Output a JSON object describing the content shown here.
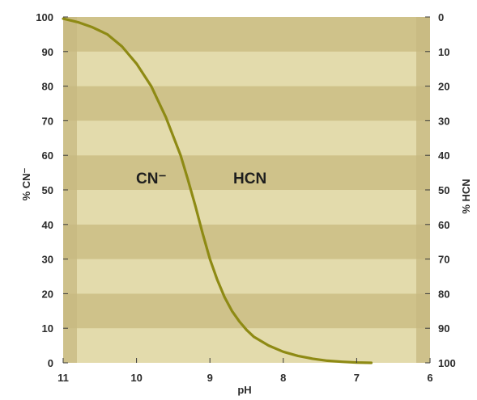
{
  "chart_data": {
    "type": "line",
    "title": "",
    "xlabel": "pH",
    "ylabel_left": "% CN⁻",
    "ylabel_right": "% HCN",
    "xlim": [
      11,
      6
    ],
    "ylim": [
      0,
      100
    ],
    "x_ticks": [
      "11",
      "10",
      "9",
      "8",
      "7",
      "6"
    ],
    "y_ticks_left": [
      "0",
      "10",
      "20",
      "30",
      "40",
      "50",
      "60",
      "70",
      "80",
      "90",
      "100"
    ],
    "y_ticks_right": [
      "100",
      "90",
      "80",
      "70",
      "60",
      "50",
      "40",
      "30",
      "20",
      "10",
      "0"
    ],
    "annotations": [
      "CN⁻",
      "HCN"
    ],
    "grid": false,
    "banding": "alternating horizontal bands every 10%",
    "colors": {
      "background": "#e2d9a9",
      "band_dark": "#cfc28a",
      "band_light": "#e3dbac",
      "edge_strip": "#c7b880",
      "curve": "#8e8a14"
    },
    "series": [
      {
        "x": [
          11.0,
          10.8,
          10.6,
          10.4,
          10.2,
          10.0,
          9.8,
          9.6,
          9.4,
          9.3,
          9.2,
          9.1,
          9.0,
          8.9,
          8.8,
          8.7,
          8.6,
          8.5,
          8.4,
          8.2,
          8.0,
          7.8,
          7.6,
          7.4,
          7.2,
          7.0,
          6.8
        ],
        "y": [
          99.5,
          98.5,
          97.0,
          95.0,
          91.5,
          86.5,
          80.0,
          71.0,
          60.0,
          53.0,
          45.5,
          37.5,
          30.0,
          24.0,
          19.0,
          15.0,
          12.0,
          9.5,
          7.5,
          5.0,
          3.2,
          2.0,
          1.2,
          0.6,
          0.3,
          0.1,
          0.0
        ]
      }
    ]
  }
}
